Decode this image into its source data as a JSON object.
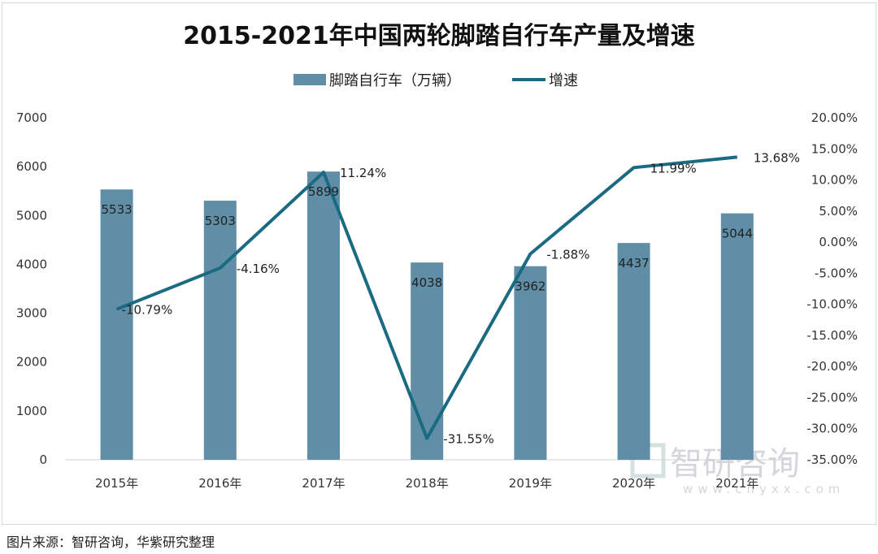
{
  "chart_data": {
    "type": "bar+line",
    "title": "2015-2021年中国两轮脚踏自行车产量及增速",
    "categories": [
      "2015年",
      "2016年",
      "2017年",
      "2018年",
      "2019年",
      "2020年",
      "2021年"
    ],
    "series": [
      {
        "name": "脚踏自行车（万辆）",
        "type": "bar",
        "axis": "left",
        "color": "#5f8ea6",
        "values": [
          5533,
          5303,
          5899,
          4038,
          3962,
          4437,
          5044
        ],
        "labels": [
          "5533",
          "5303",
          "5899",
          "4038",
          "3962",
          "4437",
          "5044"
        ]
      },
      {
        "name": "增速",
        "type": "line",
        "axis": "right",
        "color": "#1a6a82",
        "values": [
          -10.79,
          -4.16,
          11.24,
          -31.55,
          -1.88,
          11.99,
          13.68
        ],
        "labels": [
          "-10.79%",
          "-4.16%",
          "11.24%",
          "-31.55%",
          "-1.88%",
          "11.99%",
          "13.68%"
        ]
      }
    ],
    "y_left": {
      "range": [
        0,
        7000
      ],
      "ticks": [
        "0",
        "1000",
        "2000",
        "3000",
        "4000",
        "5000",
        "6000",
        "7000"
      ]
    },
    "y_right": {
      "range": [
        -35,
        20
      ],
      "ticks": [
        "-35.00%",
        "-30.00%",
        "-25.00%",
        "-20.00%",
        "-15.00%",
        "-10.00%",
        "-5.00%",
        "0.00%",
        "5.00%",
        "10.00%",
        "15.00%",
        "20.00%"
      ]
    },
    "grid": false,
    "legend": "top-center"
  },
  "watermark": {
    "name": "智研咨询",
    "url": "www.chyxx.com"
  },
  "footer": "图片来源：智研咨询，华紫研究整理"
}
